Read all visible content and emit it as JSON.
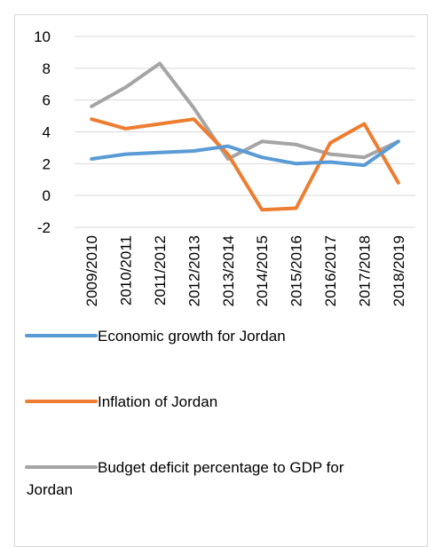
{
  "chart_data": {
    "type": "line",
    "title": "",
    "xlabel": "",
    "ylabel": "",
    "categories": [
      "2009/2010",
      "2010/2011",
      "2011/2012",
      "2012/2013",
      "2013/2014",
      "2014/2015",
      "2015/2016",
      "2016/2017",
      "2017/2018",
      "2018/2019"
    ],
    "ylim": [
      -2,
      10
    ],
    "yticks": [
      "10",
      "8",
      "6",
      "4",
      "2",
      "0",
      "-2"
    ],
    "grid": true,
    "legend_position": "bottom",
    "series": [
      {
        "name": "Economic growth for Jordan",
        "color": "#5B9BD5",
        "values": [
          2.3,
          2.6,
          2.7,
          2.8,
          3.1,
          2.4,
          2.0,
          2.1,
          1.9,
          3.4
        ]
      },
      {
        "name": "Inflation of Jordan",
        "color": "#ED7D31",
        "values": [
          4.8,
          4.2,
          4.5,
          4.8,
          2.6,
          -0.9,
          -0.8,
          3.3,
          4.5,
          0.8
        ]
      },
      {
        "name": "Budget deficit percentage to GDP for Jordan",
        "color": "#A5A5A5",
        "values": [
          5.6,
          6.8,
          8.3,
          5.5,
          2.3,
          3.4,
          3.2,
          2.6,
          2.4,
          3.4
        ]
      }
    ]
  }
}
